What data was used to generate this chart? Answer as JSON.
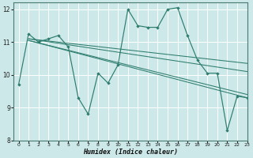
{
  "title": "",
  "xlabel": "Humidex (Indice chaleur)",
  "bg_color": "#cce8e8",
  "line_color": "#2e7d6e",
  "grid_color": "#ffffff",
  "xlim": [
    -0.5,
    23
  ],
  "ylim": [
    8,
    12.2
  ],
  "xticks": [
    0,
    1,
    2,
    3,
    4,
    5,
    6,
    7,
    8,
    9,
    10,
    11,
    12,
    13,
    14,
    15,
    16,
    17,
    18,
    19,
    20,
    21,
    22,
    23
  ],
  "yticks": [
    8,
    9,
    10,
    11,
    12
  ],
  "series_jagged": [
    9.7,
    11.25,
    11.0,
    11.1,
    11.2,
    10.85,
    9.3,
    8.8,
    10.05,
    9.75,
    10.3,
    12.0,
    11.5,
    11.45,
    11.45,
    12.0,
    12.05,
    11.2,
    10.45,
    10.05,
    10.05,
    8.3,
    9.35,
    9.3
  ],
  "trend_lines": [
    {
      "x": [
        1,
        23
      ],
      "y": [
        11.1,
        10.35
      ]
    },
    {
      "x": [
        1,
        23
      ],
      "y": [
        11.1,
        10.1
      ]
    },
    {
      "x": [
        1,
        23
      ],
      "y": [
        11.05,
        9.4
      ]
    },
    {
      "x": [
        1,
        23
      ],
      "y": [
        11.05,
        9.3
      ]
    }
  ]
}
